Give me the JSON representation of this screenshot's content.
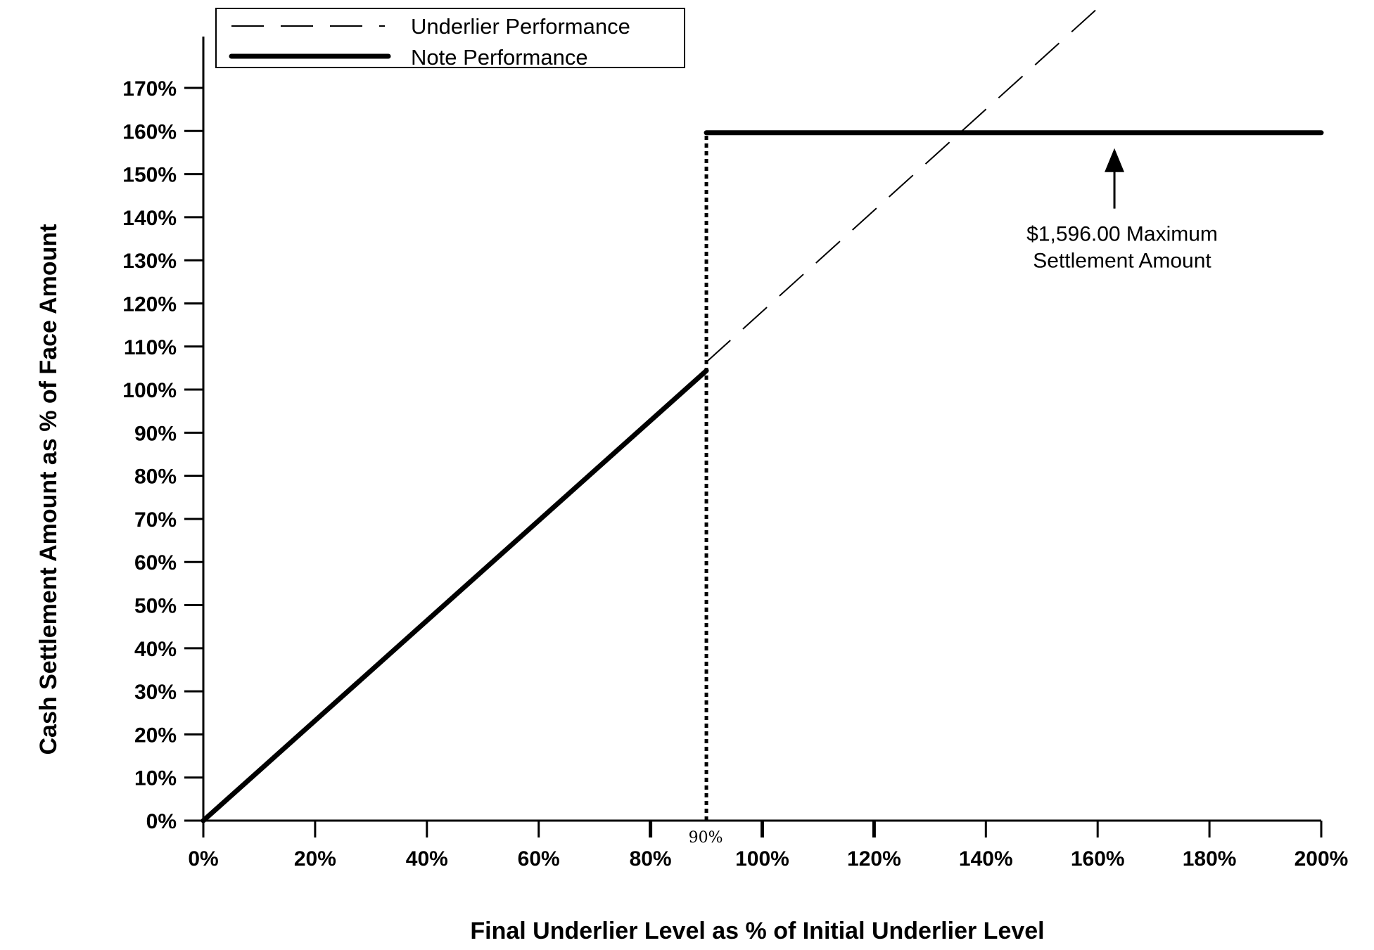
{
  "chart_data": {
    "type": "line",
    "title": "",
    "xlabel": "Final Underlier Level as % of Initial Underlier Level",
    "ylabel": "Cash Settlement Amount as % of Face Amount",
    "xlim": [
      0,
      200
    ],
    "ylim": [
      0,
      170
    ],
    "x_ticks": [
      0,
      20,
      40,
      60,
      80,
      100,
      120,
      140,
      160,
      180,
      200
    ],
    "x_tick_labels": [
      "0%",
      "20%",
      "40%",
      "60%",
      "80%",
      "100%",
      "120%",
      "140%",
      "160%",
      "180%",
      "200%"
    ],
    "y_ticks": [
      0,
      10,
      20,
      30,
      40,
      50,
      60,
      70,
      80,
      90,
      100,
      110,
      120,
      130,
      140,
      150,
      160,
      170
    ],
    "y_tick_labels": [
      "0%",
      "10%",
      "20%",
      "30%",
      "40%",
      "50%",
      "60%",
      "70%",
      "80%",
      "90%",
      "100%",
      "110%",
      "120%",
      "130%",
      "140%",
      "150%",
      "160%",
      "170%"
    ],
    "grid": false,
    "legend": {
      "position": "top-left",
      "entries": [
        {
          "label": "Underlier Performance",
          "style": "dashed"
        },
        {
          "label": "Note Performance",
          "style": "solid-thick"
        }
      ]
    },
    "series": [
      {
        "name": "Underlier Performance",
        "style": "dashed",
        "points": [
          [
            90,
            106.4
          ],
          [
            159.6,
            188
          ]
        ]
      },
      {
        "name": "Note Performance",
        "style": "solid-thick",
        "points": [
          [
            0,
            0
          ],
          [
            90,
            104.4
          ]
        ],
        "cap_points": [
          [
            90,
            159.6
          ],
          [
            200,
            159.6
          ]
        ]
      }
    ],
    "reference_line": {
      "x": 90,
      "y_from": 0,
      "y_to": 159.6,
      "style": "dotted",
      "label": "90%"
    },
    "annotations": [
      {
        "text_lines": [
          "$1,596.00 Maximum",
          "Settlement Amount"
        ],
        "arrow_x": 163,
        "arrow_from_y": 142,
        "arrow_to_y": 156
      }
    ],
    "colors": {
      "ink": "#000000",
      "background": "#ffffff"
    }
  }
}
